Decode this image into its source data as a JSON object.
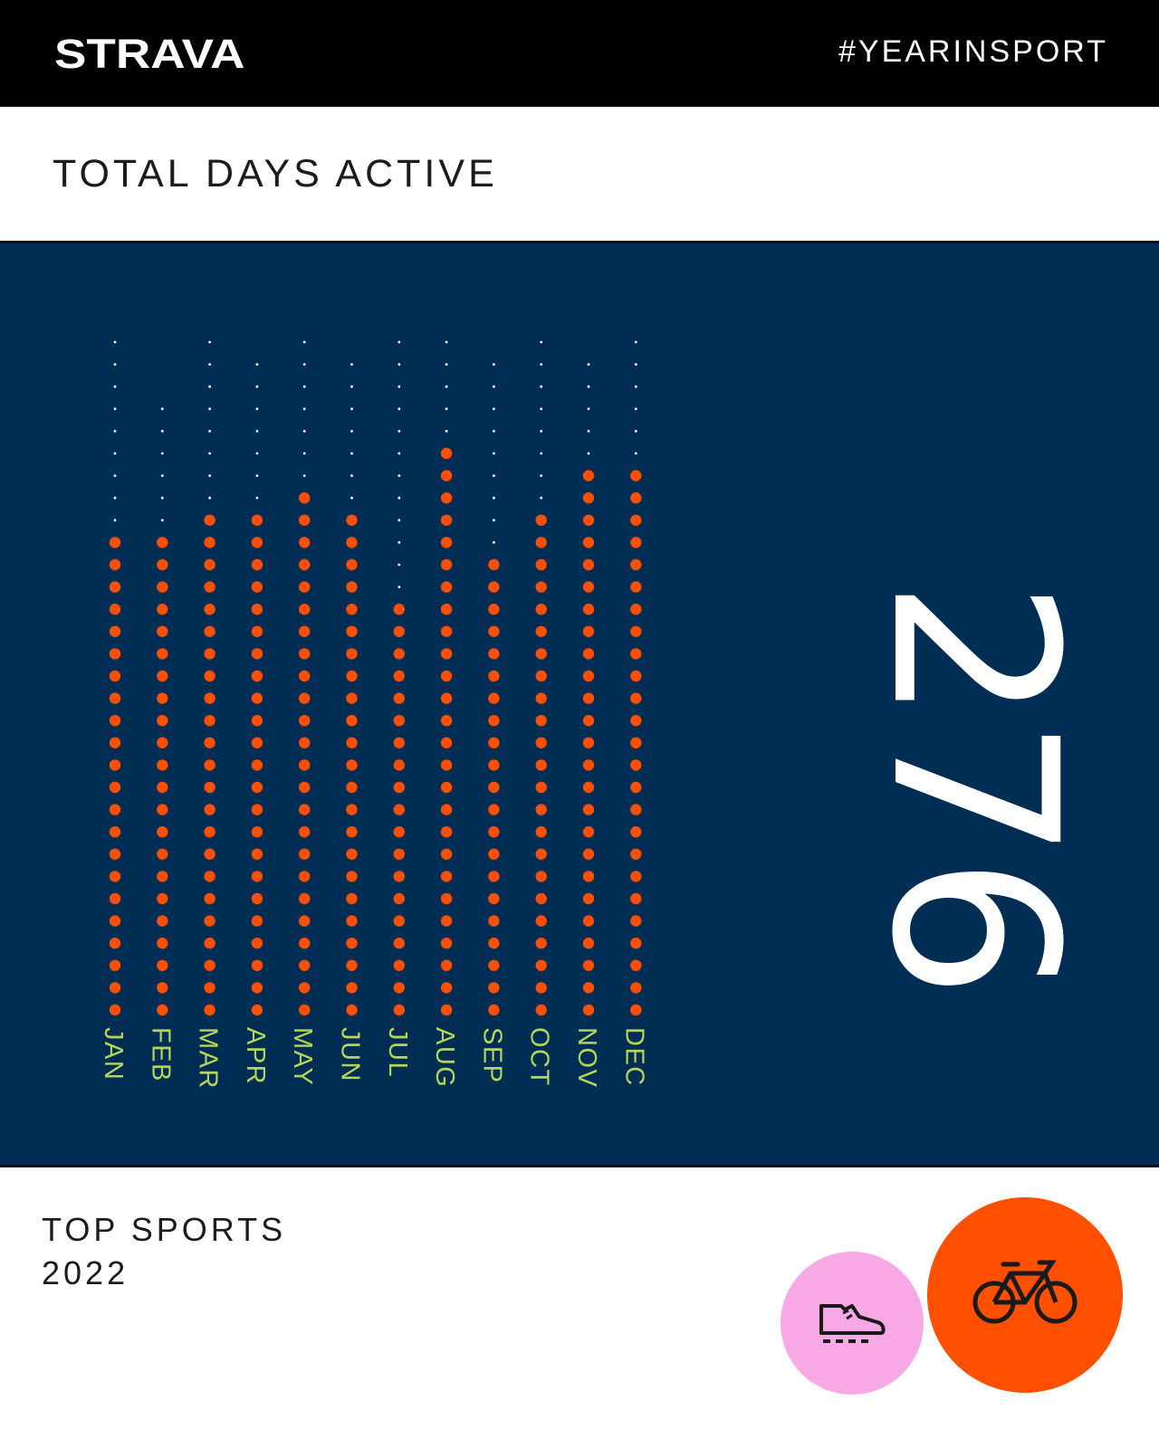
{
  "header": {
    "brand": "STRAVA",
    "hashtag": "#YEARINSPORT"
  },
  "section": {
    "title": "TOTAL DAYS ACTIVE"
  },
  "total_days": "276",
  "chart_data": {
    "type": "scatter",
    "title": "",
    "categories": [
      "JAN",
      "FEB",
      "MAR",
      "APR",
      "MAY",
      "JUN",
      "JUL",
      "AUG",
      "SEP",
      "OCT",
      "NOV",
      "DEC"
    ],
    "days_in_month": [
      31,
      28,
      31,
      30,
      31,
      30,
      31,
      31,
      30,
      31,
      30,
      31
    ],
    "values": [
      22,
      22,
      23,
      23,
      24,
      23,
      19,
      26,
      21,
      23,
      25,
      25
    ],
    "series": [
      {
        "name": "days active",
        "values": [
          22,
          22,
          23,
          23,
          24,
          23,
          19,
          26,
          21,
          23,
          25,
          25
        ]
      }
    ],
    "ylim": [
      0,
      31
    ],
    "colors": {
      "active": "#ff4f00",
      "inactive": "#ffffff",
      "labels": "#b5d45a",
      "background": "#002d54"
    }
  },
  "top_sports": {
    "label": "TOP SPORTS",
    "year": "2022",
    "sports": [
      {
        "name": "run",
        "icon": "running-shoe-icon",
        "color": "#f9a8e6"
      },
      {
        "name": "ride",
        "icon": "bike-icon",
        "color": "#ff4f00"
      }
    ]
  }
}
